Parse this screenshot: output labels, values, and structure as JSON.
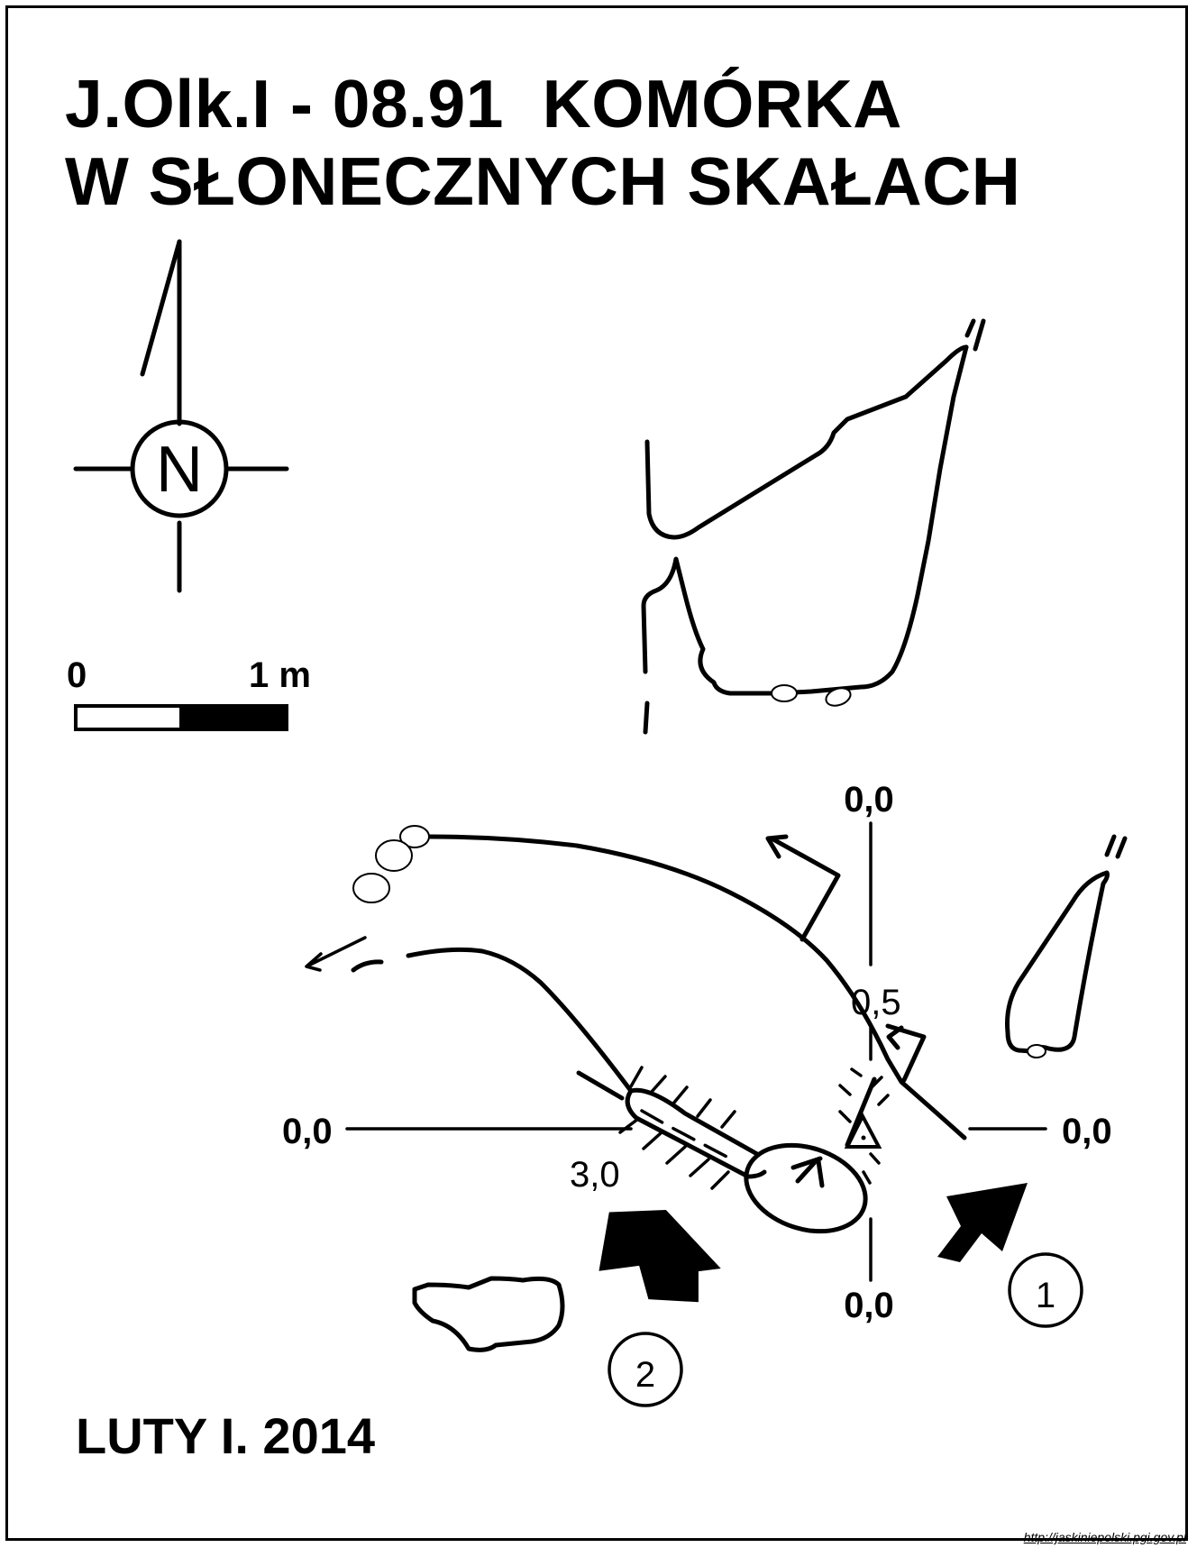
{
  "title": {
    "line1": "J.Olk.I - 08.91  KOMÓRKA",
    "line2": "W SŁONECZNYCH SKAŁACH"
  },
  "compass": {
    "letter": "N",
    "icon": "north-arrow-icon"
  },
  "scale_bar": {
    "start_label": "0",
    "end_label": "1 m"
  },
  "depth_labels": {
    "top": "0,0",
    "left": "0,0",
    "right": "0,0",
    "bottom": "0,0",
    "inner": "0,5",
    "chamber": "3,0"
  },
  "entrances": [
    {
      "number": "1"
    },
    {
      "number": "2"
    }
  ],
  "author_date": "LUTY I. 2014",
  "credit": "http://jaskiniepolski.pgi.gov.pl",
  "colors": {
    "ink": "#000000",
    "paper": "#ffffff"
  }
}
